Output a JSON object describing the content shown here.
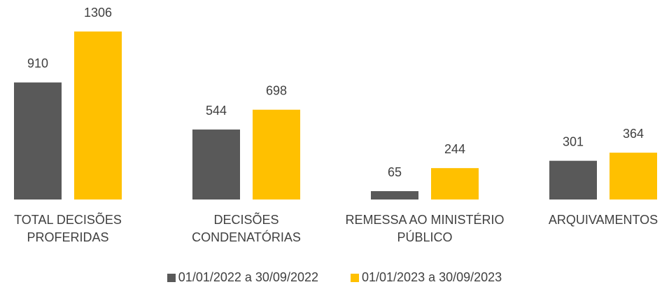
{
  "chart_data": {
    "type": "bar",
    "categories": [
      "TOTAL DECISÕES PROFERIDAS",
      "DECISÕES CONDENATÓRIAS",
      "REMESSA AO MINISTÉRIO PÚBLICO",
      "ARQUIVAMENTOS"
    ],
    "series": [
      {
        "name": "01/01/2022 a 30/09/2022",
        "color": "#595959",
        "values": [
          910,
          544,
          65,
          301
        ]
      },
      {
        "name": "01/01/2023 a 30/09/2023",
        "color": "#FFC000",
        "values": [
          1306,
          698,
          244,
          364
        ]
      }
    ],
    "legend": "bottom"
  }
}
